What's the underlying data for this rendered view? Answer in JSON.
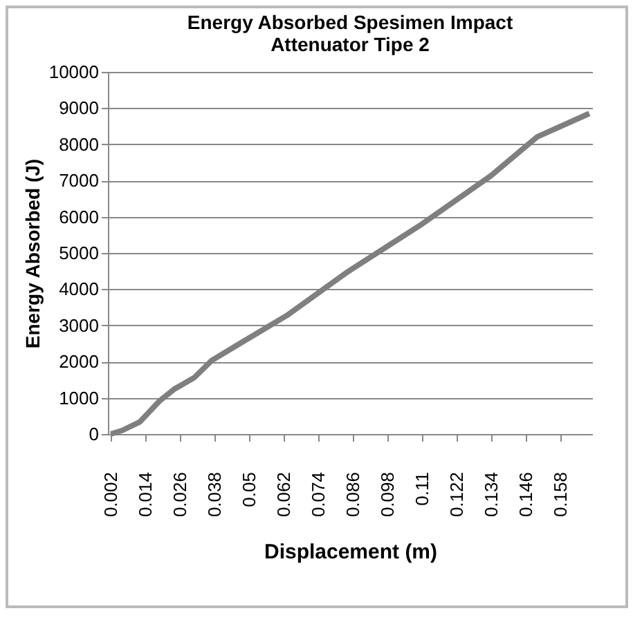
{
  "chart_data": {
    "type": "line",
    "title": "Energy Absorbed Spesimen Impact Attenuator Tipe 2",
    "xlabel": "Displacement (m)",
    "ylabel": "Energy Absorbed (J)",
    "x": [
      0.002,
      0.006,
      0.012,
      0.019,
      0.024,
      0.031,
      0.037,
      0.047,
      0.063,
      0.084,
      0.11,
      0.134,
      0.15,
      0.168
    ],
    "series": [
      {
        "color": "#7f7f7f",
        "values": [
          0,
          100,
          330,
          920,
          1240,
          1560,
          2030,
          2510,
          3270,
          4470,
          5800,
          7140,
          8210,
          8850
        ]
      }
    ],
    "xlim": [
      0.001,
      0.169
    ],
    "xticks": [
      0.002,
      0.014,
      0.026,
      0.038,
      0.05,
      0.062,
      0.074,
      0.086,
      0.098,
      0.11,
      0.122,
      0.134,
      0.146,
      0.158
    ],
    "ylim": [
      0,
      10000
    ],
    "yticks": [
      0,
      1000,
      2000,
      3000,
      4000,
      5000,
      6000,
      7000,
      8000,
      9000,
      10000
    ],
    "grid": "y",
    "legend": false,
    "marker": "none",
    "line_style": "solid"
  }
}
